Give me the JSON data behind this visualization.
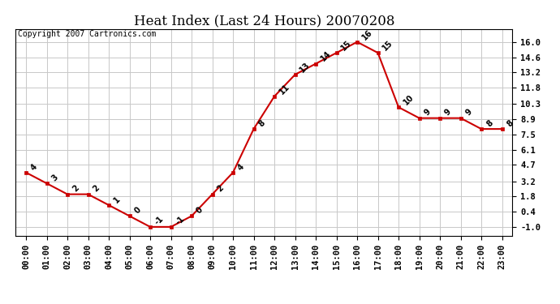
{
  "title": "Heat Index (Last 24 Hours) 20070208",
  "copyright": "Copyright 2007 Cartronics.com",
  "hours": [
    0,
    1,
    2,
    3,
    4,
    5,
    6,
    7,
    8,
    9,
    10,
    11,
    12,
    13,
    14,
    15,
    16,
    17,
    18,
    19,
    20,
    21,
    22,
    23
  ],
  "x_labels": [
    "00:00",
    "01:00",
    "02:00",
    "03:00",
    "04:00",
    "05:00",
    "06:00",
    "07:00",
    "08:00",
    "09:00",
    "10:00",
    "11:00",
    "12:00",
    "13:00",
    "14:00",
    "15:00",
    "16:00",
    "17:00",
    "18:00",
    "19:00",
    "20:00",
    "21:00",
    "22:00",
    "23:00"
  ],
  "values": [
    4,
    3,
    2,
    2,
    1,
    0,
    -1,
    -1,
    0,
    2,
    4,
    8,
    11,
    13,
    14,
    15,
    16,
    15,
    10,
    9,
    9,
    9,
    8,
    8
  ],
  "y_ticks": [
    -1.0,
    0.4,
    1.8,
    3.2,
    4.7,
    6.1,
    7.5,
    8.9,
    10.3,
    11.8,
    13.2,
    14.6,
    16.0
  ],
  "y_tick_labels": [
    "-1.0",
    "0.4",
    "1.8",
    "3.2",
    "4.7",
    "6.1",
    "7.5",
    "8.9",
    "10.3",
    "11.8",
    "13.2",
    "14.6",
    "16.0"
  ],
  "ylim": [
    -1.8,
    17.2
  ],
  "xlim": [
    -0.5,
    23.5
  ],
  "line_color": "#cc0000",
  "marker_color": "#cc0000",
  "bg_color": "#ffffff",
  "grid_color": "#c8c8c8",
  "title_fontsize": 12,
  "copyright_fontsize": 7,
  "label_fontsize": 7,
  "tick_fontsize": 7.5
}
